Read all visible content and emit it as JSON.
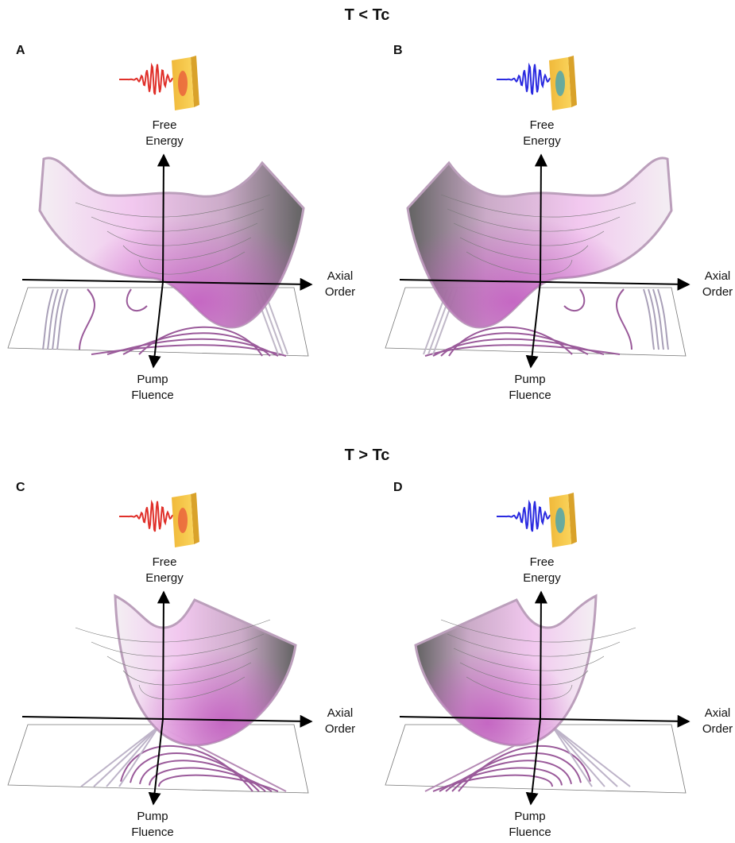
{
  "sections": [
    {
      "title": "T < Tc"
    },
    {
      "title": "T > Tc"
    }
  ],
  "panels": [
    {
      "label": "A",
      "free_energy": [
        "Free",
        "Energy"
      ],
      "axial_order": [
        "Axial",
        "Order"
      ],
      "pump_fluence": [
        "Pump",
        "Fluence"
      ]
    },
    {
      "label": "B",
      "free_energy": [
        "Free",
        "Energy"
      ],
      "axial_order": [
        "Axial",
        "Order"
      ],
      "pump_fluence": [
        "Pump",
        "Fluence"
      ]
    },
    {
      "label": "C",
      "free_energy": [
        "Free",
        "Energy"
      ],
      "axial_order": [
        "Axial",
        "Order"
      ],
      "pump_fluence": [
        "Pump",
        "Fluence"
      ]
    },
    {
      "label": "D",
      "free_energy": [
        "Free",
        "Energy"
      ],
      "axial_order": [
        "Axial",
        "Order"
      ],
      "pump_fluence": [
        "Pump",
        "Fluence"
      ]
    }
  ]
}
